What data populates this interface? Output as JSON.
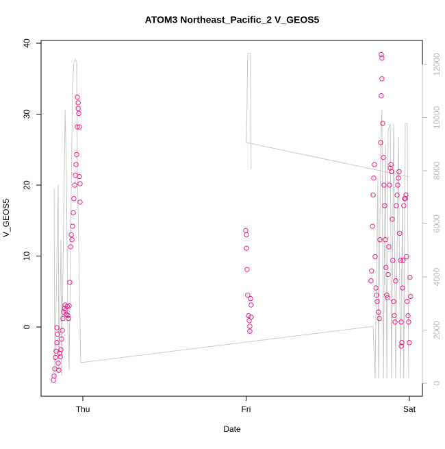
{
  "chart_data": {
    "type": "scatter",
    "title": "ATOM3 Northeast_Pacific_2 V_GEOS5",
    "x_label": "Date",
    "y_label": "V_GEOS5",
    "xlim": [
      -0.256,
      2.08
    ],
    "xticks": [
      {
        "value": 0,
        "label": "Thu"
      },
      {
        "value": 1,
        "label": "Fri"
      },
      {
        "value": 2,
        "label": "Sat"
      }
    ],
    "ylim": [
      -9.76,
      40.39
    ],
    "yticks": [
      0,
      10,
      20,
      30,
      40
    ],
    "y2lim": [
      -490,
      12903
    ],
    "y2ticks": [
      0,
      2000,
      4000,
      6000,
      8000,
      10000,
      12000
    ],
    "series": [
      {
        "color": "#f0198c",
        "type": "scatter",
        "x": [
          -0.18,
          -0.176,
          -0.172,
          -0.168,
          -0.164,
          -0.159,
          -0.159,
          -0.155,
          -0.151,
          -0.147,
          -0.143,
          -0.138,
          -0.134,
          -0.13,
          -0.126,
          -0.122,
          -0.117,
          -0.113,
          -0.109,
          -0.105,
          -0.101,
          -0.096,
          -0.092,
          -0.088,
          -0.084,
          -0.08,
          -0.075,
          -0.071,
          -0.067,
          -0.063,
          -0.059,
          -0.055,
          -0.05,
          -0.046,
          -0.042,
          -0.038,
          -0.034,
          -0.034,
          -0.029,
          -0.029,
          -0.025,
          -0.021,
          -0.021,
          -0.017,
          -0.017,
          0.998,
          1.002,
          1.002,
          1.006,
          1.01,
          1.015,
          1.019,
          1.023,
          1.023,
          1.027,
          1.031,
          1.031,
          1.765,
          1.769,
          1.774,
          1.778,
          1.782,
          1.786,
          1.79,
          1.795,
          1.799,
          1.803,
          1.811,
          1.816,
          1.82,
          1.824,
          1.828,
          1.828,
          1.832,
          1.832,
          1.837,
          1.841,
          1.845,
          1.849,
          1.853,
          1.857,
          1.862,
          1.866,
          1.87,
          1.874,
          1.878,
          1.883,
          1.887,
          1.891,
          1.895,
          1.899,
          1.904,
          1.908,
          1.912,
          1.916,
          1.92,
          1.925,
          1.929,
          1.933,
          1.937,
          1.941,
          1.946,
          1.95,
          1.95,
          1.954,
          1.958,
          1.962,
          1.966,
          1.971,
          1.975,
          1.979,
          1.983,
          1.987,
          1.992,
          1.996,
          2.0,
          2.004,
          2.008
        ],
        "values": [
          -7.5,
          -6.9,
          -5.9,
          -4.3,
          -3.4,
          -2.2,
          -0.1,
          -1.0,
          -5.1,
          -6.1,
          -3.7,
          -4.2,
          -3.2,
          -1.7,
          -0.5,
          1.2,
          2.1,
          2.6,
          3.1,
          2.4,
          1.8,
          2.9,
          1.6,
          1.2,
          3.0,
          6.3,
          11.3,
          13.0,
          12.3,
          14.2,
          16.1,
          18.1,
          20.0,
          21.4,
          22.9,
          24.3,
          28.2,
          32.4,
          31.6,
          30.8,
          30.1,
          28.2,
          21.2,
          20.2,
          17.6,
          13.6,
          13.0,
          11.1,
          8.1,
          4.5,
          1.6,
          0.9,
          0.1,
          -0.6,
          4.0,
          3.1,
          1.4,
          6.5,
          7.9,
          14.2,
          18.6,
          21.0,
          22.9,
          9.9,
          5.5,
          4.5,
          3.6,
          2.1,
          1.2,
          12.3,
          26.0,
          32.6,
          38.4,
          37.9,
          35.0,
          28.7,
          23.9,
          20.0,
          17.1,
          12.3,
          8.4,
          4.5,
          4.1,
          7.4,
          11.3,
          20.0,
          22.4,
          22.9,
          21.9,
          15.2,
          9.4,
          3.6,
          1.6,
          0.7,
          6.5,
          17.1,
          18.6,
          20.0,
          21.0,
          21.9,
          13.2,
          9.4,
          0.7,
          -2.7,
          -2.2,
          5.5,
          9.4,
          17.1,
          18.1,
          18.1,
          18.6,
          9.9,
          3.6,
          1.6,
          0.7,
          -2.2,
          7.0,
          4.3
        ]
      },
      {
        "color": "#c8c8c8",
        "type": "line",
        "axis": "y2",
        "x": [
          -0.176,
          -0.172,
          -0.151,
          -0.147,
          -0.134,
          -0.13,
          -0.109,
          -0.101,
          -0.092,
          -0.084,
          -0.075,
          -0.063,
          -0.055,
          -0.046,
          -0.038,
          -0.034,
          -0.013,
          1.778,
          1.79,
          1.807,
          1.811,
          1.824,
          1.832,
          1.841,
          1.853,
          1.862,
          1.87,
          1.883,
          1.891,
          1.904,
          1.916,
          1.933,
          1.946,
          1.958,
          1.966,
          1.975,
          1.987,
          1.996,
          null,
          1.031,
          1.027,
          1.01,
          1.002,
          2.0
        ],
        "values": [
          7329,
          232,
          7458,
          361,
          5394,
          284,
          10297,
          7974,
          2039,
          490,
          5394,
          11329,
          12103,
          12181,
          12103,
          8232,
          774,
          2142,
          181,
          7716,
          181,
          8877,
          10297,
          181,
          9006,
          181,
          9523,
          9781,
          181,
          9781,
          181,
          9265,
          181,
          6684,
          181,
          9781,
          9781,
          181,
          null,
          8052,
          12413,
          12413,
          9058,
          7768
        ]
      }
    ]
  }
}
